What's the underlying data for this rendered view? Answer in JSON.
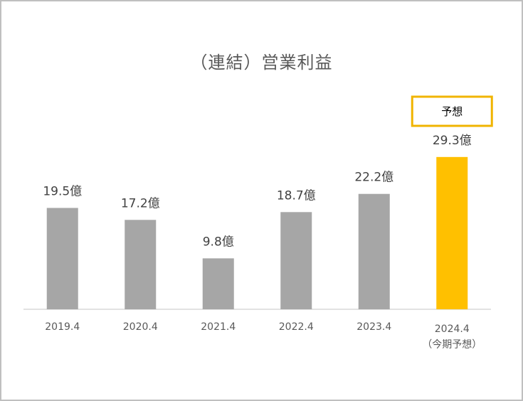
{
  "chart_data": {
    "type": "bar",
    "title": "（連結）営業利益",
    "categories": [
      "2019.4",
      "2020.4",
      "2021.4",
      "2022.4",
      "2023.4",
      "2024.4"
    ],
    "category_sublabels": [
      "",
      "",
      "",
      "",
      "",
      "（今期予想）"
    ],
    "values": [
      19.5,
      17.2,
      9.8,
      18.7,
      22.2,
      29.3
    ],
    "value_labels": [
      "19.5億",
      "17.2億",
      "9.8億",
      "18.7億",
      "22.2億",
      "29.3億"
    ],
    "forecast_index": 5,
    "forecast_tag": "予想",
    "colors": {
      "actual": "#a6a6a6",
      "forecast": "#ffc000",
      "forecast_border": "#f0b400"
    },
    "ylim": [
      0,
      33
    ],
    "grid": false
  }
}
